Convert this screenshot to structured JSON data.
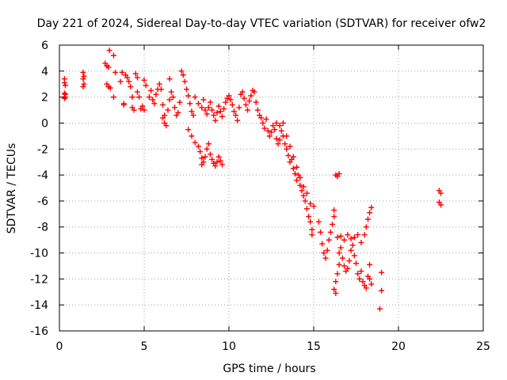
{
  "chart_data": {
    "type": "scatter",
    "title": "Day 221 of 2024, Sidereal Day-to-day VTEC variation (SDTVAR) for receiver ofw2",
    "xlabel": "GPS time / hours",
    "ylabel": "SDTVAR / TECUs",
    "xlim": [
      0,
      25
    ],
    "ylim": [
      -16,
      6
    ],
    "xticks": [
      0,
      5,
      10,
      15,
      20,
      25
    ],
    "yticks": [
      -16,
      -14,
      -12,
      -10,
      -8,
      -6,
      -4,
      -2,
      0,
      2,
      4,
      6
    ],
    "grid": true,
    "marker": "+",
    "marker_color": "#ff0000",
    "series": [
      {
        "name": "ofw2",
        "points": [
          [
            0.3,
            3.4
          ],
          [
            0.3,
            3.1
          ],
          [
            0.35,
            2.9
          ],
          [
            0.3,
            2.3
          ],
          [
            0.35,
            2.0
          ],
          [
            0.3,
            1.9
          ],
          [
            0.35,
            2.2
          ],
          [
            1.4,
            3.9
          ],
          [
            1.4,
            3.4
          ],
          [
            1.45,
            3.0
          ],
          [
            1.4,
            2.8
          ],
          [
            1.45,
            3.6
          ],
          [
            2.7,
            4.6
          ],
          [
            2.8,
            4.4
          ],
          [
            2.9,
            4.3
          ],
          [
            2.95,
            5.6
          ],
          [
            3.2,
            5.2
          ],
          [
            3.3,
            3.9
          ],
          [
            3.2,
            2.0
          ],
          [
            2.8,
            3.0
          ],
          [
            2.9,
            2.8
          ],
          [
            3.0,
            2.7
          ],
          [
            3.6,
            3.2
          ],
          [
            3.7,
            3.9
          ],
          [
            3.8,
            1.5
          ],
          [
            3.8,
            1.4
          ],
          [
            3.9,
            3.7
          ],
          [
            4.0,
            3.5
          ],
          [
            4.1,
            3.2
          ],
          [
            4.2,
            2.8
          ],
          [
            4.3,
            2.0
          ],
          [
            4.3,
            1.2
          ],
          [
            4.4,
            1.0
          ],
          [
            4.5,
            3.8
          ],
          [
            4.6,
            3.5
          ],
          [
            4.6,
            2.4
          ],
          [
            4.7,
            2.0
          ],
          [
            4.8,
            1.1
          ],
          [
            4.9,
            1.3
          ],
          [
            5.0,
            1.0
          ],
          [
            5.0,
            3.3
          ],
          [
            5.1,
            2.9
          ],
          [
            5.3,
            2.0
          ],
          [
            5.4,
            2.5
          ],
          [
            5.5,
            1.8
          ],
          [
            5.6,
            1.5
          ],
          [
            5.7,
            2.2
          ],
          [
            5.8,
            2.6
          ],
          [
            5.9,
            3.0
          ],
          [
            6.0,
            2.6
          ],
          [
            6.1,
            1.4
          ],
          [
            6.1,
            0.4
          ],
          [
            6.2,
            0.0
          ],
          [
            6.3,
            -0.2
          ],
          [
            6.2,
            0.6
          ],
          [
            6.4,
            1.0
          ],
          [
            6.5,
            1.8
          ],
          [
            6.5,
            3.4
          ],
          [
            6.6,
            2.4
          ],
          [
            6.7,
            2.0
          ],
          [
            6.8,
            1.2
          ],
          [
            6.9,
            0.6
          ],
          [
            7.0,
            0.8
          ],
          [
            7.1,
            1.6
          ],
          [
            7.2,
            4.0
          ],
          [
            7.3,
            3.7
          ],
          [
            7.4,
            3.2
          ],
          [
            7.5,
            2.6
          ],
          [
            7.6,
            2.1
          ],
          [
            7.7,
            1.5
          ],
          [
            7.8,
            0.9
          ],
          [
            7.9,
            0.6
          ],
          [
            7.6,
            -0.5
          ],
          [
            7.8,
            -1.0
          ],
          [
            8.0,
            -1.5
          ],
          [
            8.2,
            -1.8
          ],
          [
            8.3,
            -2.2
          ],
          [
            8.4,
            -2.7
          ],
          [
            8.4,
            -3.2
          ],
          [
            8.5,
            -3.0
          ],
          [
            8.6,
            -2.6
          ],
          [
            8.7,
            -2.0
          ],
          [
            8.8,
            -1.6
          ],
          [
            8.9,
            -2.4
          ],
          [
            9.0,
            -2.8
          ],
          [
            9.1,
            -3.1
          ],
          [
            9.2,
            -3.3
          ],
          [
            9.3,
            -3.0
          ],
          [
            9.4,
            -2.6
          ],
          [
            9.5,
            -2.9
          ],
          [
            9.6,
            -3.2
          ],
          [
            8.0,
            2.0
          ],
          [
            8.2,
            1.5
          ],
          [
            8.4,
            1.2
          ],
          [
            8.5,
            1.8
          ],
          [
            8.6,
            1.0
          ],
          [
            8.7,
            0.7
          ],
          [
            8.8,
            1.2
          ],
          [
            8.9,
            1.6
          ],
          [
            9.0,
            1.0
          ],
          [
            9.1,
            0.6
          ],
          [
            9.2,
            0.2
          ],
          [
            9.3,
            0.8
          ],
          [
            9.4,
            1.3
          ],
          [
            9.5,
            0.9
          ],
          [
            9.6,
            0.5
          ],
          [
            9.7,
            1.1
          ],
          [
            9.8,
            1.6
          ],
          [
            9.9,
            1.9
          ],
          [
            10.0,
            2.1
          ],
          [
            10.1,
            1.8
          ],
          [
            10.2,
            1.4
          ],
          [
            10.3,
            0.9
          ],
          [
            10.4,
            0.6
          ],
          [
            10.5,
            0.2
          ],
          [
            10.6,
            1.2
          ],
          [
            10.7,
            2.2
          ],
          [
            10.8,
            2.4
          ],
          [
            10.9,
            1.9
          ],
          [
            11.0,
            1.4
          ],
          [
            11.1,
            1.0
          ],
          [
            11.2,
            1.7
          ],
          [
            11.3,
            2.1
          ],
          [
            11.4,
            2.5
          ],
          [
            11.5,
            2.4
          ],
          [
            11.6,
            1.6
          ],
          [
            11.7,
            1.0
          ],
          [
            11.8,
            0.6
          ],
          [
            11.9,
            0.4
          ],
          [
            12.0,
            0.0
          ],
          [
            12.1,
            -0.4
          ],
          [
            12.2,
            0.3
          ],
          [
            12.3,
            -0.6
          ],
          [
            12.4,
            -1.0
          ],
          [
            12.5,
            -0.7
          ],
          [
            12.6,
            -0.2
          ],
          [
            12.7,
            -0.5
          ],
          [
            12.8,
            -1.2
          ],
          [
            12.9,
            -1.6
          ],
          [
            13.0,
            -1.3
          ],
          [
            13.1,
            -0.6
          ],
          [
            13.2,
            -1.0
          ],
          [
            13.3,
            -1.6
          ],
          [
            13.4,
            -2.0
          ],
          [
            13.5,
            -2.5
          ],
          [
            13.6,
            -3.0
          ],
          [
            13.7,
            -2.8
          ],
          [
            13.8,
            -3.5
          ],
          [
            13.9,
            -3.9
          ],
          [
            14.0,
            -4.4
          ],
          [
            14.1,
            -4.0
          ],
          [
            14.2,
            -4.8
          ],
          [
            14.3,
            -5.2
          ],
          [
            14.4,
            -5.6
          ],
          [
            14.5,
            -6.0
          ],
          [
            14.6,
            -6.6
          ],
          [
            14.7,
            -7.2
          ],
          [
            14.8,
            -7.6
          ],
          [
            14.9,
            -8.2
          ],
          [
            14.9,
            -8.6
          ],
          [
            15.0,
            -6.4
          ],
          [
            13.4,
            -1.0
          ],
          [
            13.6,
            -1.8
          ],
          [
            13.8,
            -2.6
          ],
          [
            14.0,
            -3.4
          ],
          [
            14.2,
            -4.2
          ],
          [
            14.4,
            -4.9
          ],
          [
            14.6,
            -5.4
          ],
          [
            14.8,
            -6.2
          ],
          [
            13.2,
            0.0
          ],
          [
            13.0,
            -0.2
          ],
          [
            12.8,
            0.0
          ],
          [
            15.3,
            -7.6
          ],
          [
            15.4,
            -8.4
          ],
          [
            15.5,
            -9.3
          ],
          [
            15.6,
            -10.0
          ],
          [
            15.7,
            -10.4
          ],
          [
            15.8,
            -9.8
          ],
          [
            15.9,
            -9.0
          ],
          [
            16.0,
            -8.4
          ],
          [
            16.1,
            -7.8
          ],
          [
            16.2,
            -7.2
          ],
          [
            16.2,
            -6.7
          ],
          [
            16.2,
            -12.8
          ],
          [
            16.3,
            -13.1
          ],
          [
            16.3,
            -12.2
          ],
          [
            16.4,
            -11.6
          ],
          [
            16.5,
            -10.9
          ],
          [
            16.5,
            -10.0
          ],
          [
            16.3,
            -4.0
          ],
          [
            16.4,
            -4.1
          ],
          [
            16.5,
            -3.9
          ],
          [
            16.6,
            -9.6
          ],
          [
            16.7,
            -10.4
          ],
          [
            16.8,
            -11.0
          ],
          [
            16.9,
            -11.4
          ],
          [
            17.0,
            -11.2
          ],
          [
            17.1,
            -10.6
          ],
          [
            17.2,
            -9.8
          ],
          [
            17.3,
            -9.4
          ],
          [
            17.4,
            -10.2
          ],
          [
            17.5,
            -10.8
          ],
          [
            17.6,
            -11.6
          ],
          [
            17.7,
            -12.0
          ],
          [
            17.8,
            -11.4
          ],
          [
            17.9,
            -12.2
          ],
          [
            18.0,
            -12.5
          ],
          [
            18.1,
            -12.7
          ],
          [
            18.2,
            -11.8
          ],
          [
            18.3,
            -10.9
          ],
          [
            18.3,
            -12.0
          ],
          [
            18.4,
            -12.4
          ],
          [
            16.4,
            -8.8
          ],
          [
            16.6,
            -8.7
          ],
          [
            16.8,
            -9.0
          ],
          [
            17.0,
            -8.6
          ],
          [
            17.2,
            -8.9
          ],
          [
            17.4,
            -8.8
          ],
          [
            17.6,
            -8.6
          ],
          [
            17.8,
            -9.2
          ],
          [
            18.0,
            -8.6
          ],
          [
            18.1,
            -8.0
          ],
          [
            18.2,
            -7.4
          ],
          [
            18.3,
            -6.9
          ],
          [
            18.4,
            -6.5
          ],
          [
            19.0,
            -11.5
          ],
          [
            19.0,
            -12.9
          ],
          [
            18.9,
            -14.3
          ],
          [
            22.4,
            -5.2
          ],
          [
            22.5,
            -5.4
          ],
          [
            22.4,
            -6.1
          ],
          [
            22.5,
            -6.3
          ]
        ]
      }
    ]
  }
}
